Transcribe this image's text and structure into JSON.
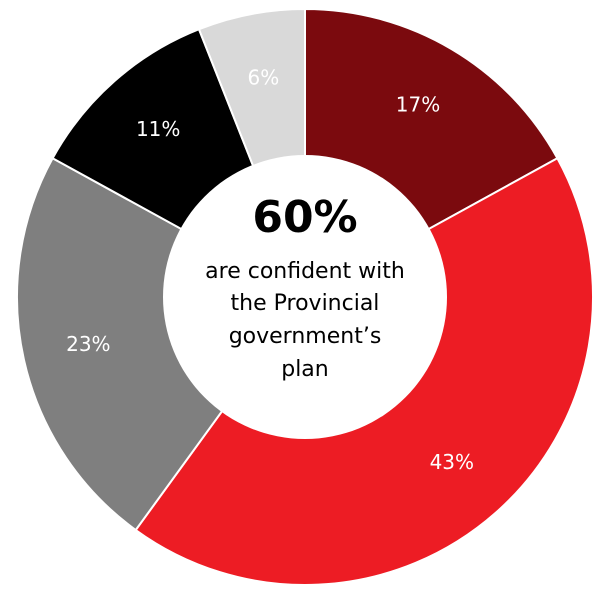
{
  "chart_data": {
    "type": "pie",
    "variant": "donut",
    "slices": [
      {
        "label": "17%",
        "value": 17,
        "color": "#7b0a0e",
        "label_color": "#ffffff"
      },
      {
        "label": "43%",
        "value": 43,
        "color": "#ed1c24",
        "label_color": "#ffffff"
      },
      {
        "label": "23%",
        "value": 23,
        "color": "#7f7f7f",
        "label_color": "#ffffff"
      },
      {
        "label": "11%",
        "value": 11,
        "color": "#000000",
        "label_color": "#ffffff"
      },
      {
        "label": "6%",
        "value": 6,
        "color": "#d9d9d9",
        "label_color": "#ffffff"
      }
    ],
    "center": {
      "value": "60%",
      "lines": [
        "are confident with",
        "the Provincial",
        "government’s",
        "plan"
      ]
    }
  }
}
